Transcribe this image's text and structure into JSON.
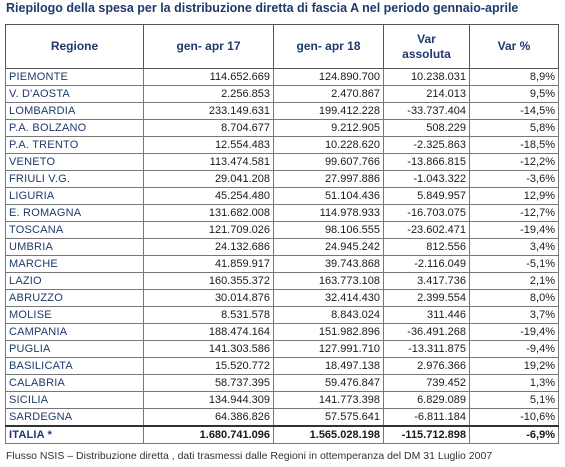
{
  "title": "Riepilogo della spesa per la distribuzione diretta di fascia A nel periodo gennaio-aprile",
  "table": {
    "header": [
      "Regione",
      "gen- apr 17",
      "gen- apr 18",
      "Var assoluta",
      "Var %"
    ],
    "rows": [
      [
        "PIEMONTE",
        "114.652.669",
        "124.890.700",
        "10.238.031",
        "8,9%"
      ],
      [
        "V. D'AOSTA",
        "2.256.853",
        "2.470.867",
        "214.013",
        "9,5%"
      ],
      [
        "LOMBARDIA",
        "233.149.631",
        "199.412.228",
        "-33.737.404",
        "-14,5%"
      ],
      [
        "P.A. BOLZANO",
        "8.704.677",
        "9.212.905",
        "508.229",
        "5,8%"
      ],
      [
        "P.A. TRENTO",
        "12.554.483",
        "10.228.620",
        "-2.325.863",
        "-18,5%"
      ],
      [
        "VENETO",
        "113.474.581",
        "99.607.766",
        "-13.866.815",
        "-12,2%"
      ],
      [
        "FRIULI V.G.",
        "29.041.208",
        "27.997.886",
        "-1.043.322",
        "-3,6%"
      ],
      [
        "LIGURIA",
        "45.254.480",
        "51.104.436",
        "5.849.957",
        "12,9%"
      ],
      [
        "E. ROMAGNA",
        "131.682.008",
        "114.978.933",
        "-16.703.075",
        "-12,7%"
      ],
      [
        "TOSCANA",
        "121.709.026",
        "98.106.555",
        "-23.602.471",
        "-19,4%"
      ],
      [
        "UMBRIA",
        "24.132.686",
        "24.945.242",
        "812.556",
        "3,4%"
      ],
      [
        "MARCHE",
        "41.859.917",
        "39.743.868",
        "-2.116.049",
        "-5,1%"
      ],
      [
        "LAZIO",
        "160.355.372",
        "163.773.108",
        "3.417.736",
        "2,1%"
      ],
      [
        "ABRUZZO",
        "30.014.876",
        "32.414.430",
        "2.399.554",
        "8,0%"
      ],
      [
        "MOLISE",
        "8.531.578",
        "8.843.024",
        "311.446",
        "3,7%"
      ],
      [
        "CAMPANIA",
        "188.474.164",
        "151.982.896",
        "-36.491.268",
        "-19,4%"
      ],
      [
        "PUGLIA",
        "141.303.586",
        "127.991.710",
        "-13.311.875",
        "-9,4%"
      ],
      [
        "BASILICATA",
        "15.520.772",
        "18.497.138",
        "2.976.366",
        "19,2%"
      ],
      [
        "CALABRIA",
        "58.737.395",
        "59.476.847",
        "739.452",
        "1,3%"
      ],
      [
        "SICILIA",
        "134.944.309",
        "141.773.398",
        "6.829.089",
        "5,1%"
      ],
      [
        "SARDEGNA",
        "64.386.826",
        "57.575.641",
        "-6.811.184",
        "-10,6%"
      ]
    ],
    "total": [
      "ITALIA *",
      "1.680.741.096",
      "1.565.028.198",
      "-115.712.898",
      "-6,9%"
    ]
  },
  "footnote": "Flusso NSIS – Distribuzione diretta , dati trasmessi dalle Regioni in ottemperanza del DM 31 Luglio 2007"
}
